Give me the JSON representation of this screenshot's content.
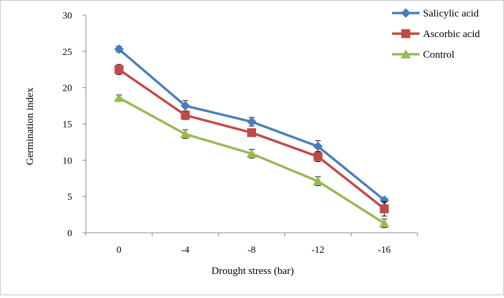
{
  "chart_data": {
    "type": "line",
    "title": "",
    "xlabel": "Drought stress (bar)",
    "ylabel": "Germination  index",
    "categories": [
      "0",
      "-4",
      "-8",
      "-12",
      "-16"
    ],
    "ylim": [
      0,
      30
    ],
    "yticks": [
      0,
      5,
      10,
      15,
      20,
      25,
      30
    ],
    "ytick_labels": [
      "0",
      "5",
      "10",
      "15",
      "20",
      "25",
      "30"
    ],
    "grid": false,
    "legend": "top-right",
    "series": [
      {
        "name": "Salicylic acid",
        "color": "#4a7ebb",
        "marker": "diamond",
        "values": [
          25.3,
          17.5,
          15.3,
          11.9,
          4.5
        ],
        "errors": [
          0.4,
          0.7,
          0.6,
          0.8,
          0.3
        ]
      },
      {
        "name": "Ascorbic acid",
        "color": "#be4b48",
        "marker": "square",
        "values": [
          22.5,
          16.2,
          13.8,
          10.5,
          3.3
        ],
        "errors": [
          0.7,
          0.6,
          0.5,
          0.7,
          1.0
        ]
      },
      {
        "name": "Control",
        "color": "#98b954",
        "marker": "triangle",
        "values": [
          18.6,
          13.6,
          10.9,
          7.1,
          1.3
        ],
        "errors": [
          0.4,
          0.6,
          0.6,
          0.6,
          0.6
        ]
      }
    ]
  }
}
